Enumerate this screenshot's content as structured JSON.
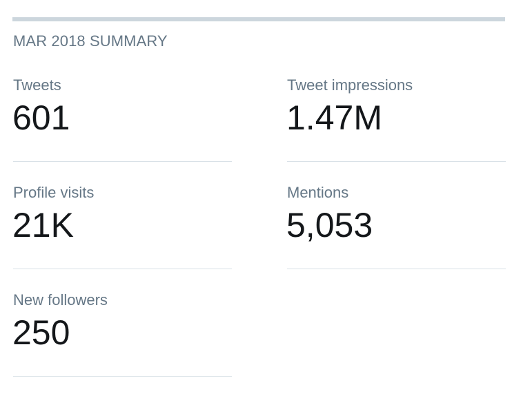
{
  "summary": {
    "title": "MAR 2018 SUMMARY",
    "metrics": [
      {
        "label": "Tweets",
        "value": "601"
      },
      {
        "label": "Tweet impressions",
        "value": "1.47M"
      },
      {
        "label": "Profile visits",
        "value": "21K"
      },
      {
        "label": "Mentions",
        "value": "5,053"
      },
      {
        "label": "New followers",
        "value": "250"
      }
    ]
  },
  "colors": {
    "label_text": "#657786",
    "value_text": "#14171a",
    "divider": "#d9e1e7",
    "top_bar": "#ccd6dd"
  }
}
